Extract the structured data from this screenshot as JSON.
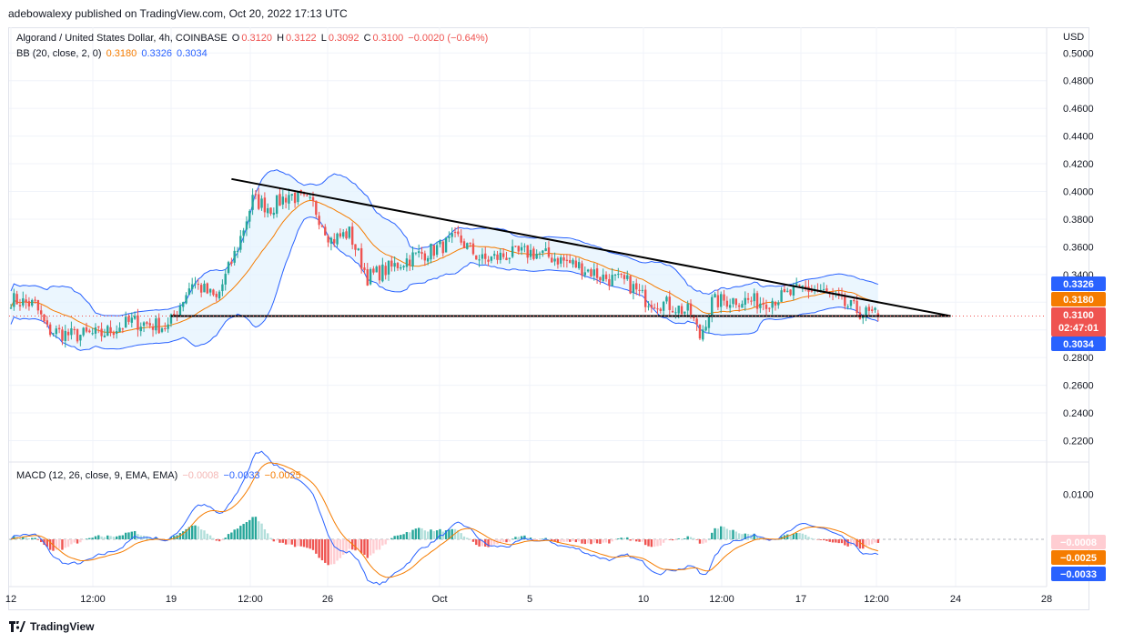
{
  "publisher_line": "adebowalexy published on TradingView.com, Oct 20, 2022 17:13 UTC",
  "footer": {
    "brand": "TradingView"
  },
  "legend": {
    "symbol": "Algorand / United States Dollar, 4h, COINBASE",
    "o_label": "O",
    "o_value": "0.3120",
    "h_label": "H",
    "h_value": "0.3122",
    "l_label": "L",
    "l_value": "0.3092",
    "c_label": "C",
    "c_value": "0.3100",
    "change": "−0.0020 (−0.64%)",
    "bb_label": "BB (20, close, 2, 0)",
    "bb_basis": "0.3180",
    "bb_upper": "0.3326",
    "bb_lower": "0.3034",
    "macd_label": "MACD (12, 26, close, 9, EMA, EMA)",
    "macd_hist": "−0.0008",
    "macd_line": "−0.0033",
    "macd_signal": "−0.0025"
  },
  "colors": {
    "up": "#26a69a",
    "down": "#ef5350",
    "bb_basis": "#f57c00",
    "bb_band": "#2962ff",
    "bb_fill": "#e3f2fd",
    "trendline": "#000000",
    "hist_light_up": "#b2dfdb",
    "hist_light_down": "#ffcdd2"
  },
  "chart_data": [
    {
      "type": "candlestick",
      "title": "Algorand / United States Dollar, 4h, COINBASE",
      "ylabel": "USD",
      "ylim": [
        0.2,
        0.5
      ],
      "y_ticks": [
        "0.5000",
        "0.4800",
        "0.4600",
        "0.4400",
        "0.4200",
        "0.4000",
        "0.3800",
        "0.3600",
        "0.3400",
        "0.2800",
        "0.2600",
        "0.2400",
        "0.2200"
      ],
      "x_ticks": [
        "12",
        "12:00",
        "19",
        "12:00",
        "26",
        "Oct",
        "5",
        "10",
        "12:00",
        "17",
        "12:00",
        "24",
        "28"
      ],
      "price_tags": [
        {
          "value": "0.3326",
          "text": "0.3326",
          "color": "#2962ff"
        },
        {
          "value": "0.3180",
          "text": "0.3180",
          "color": "#f57c00"
        },
        {
          "value": "0.3100",
          "text": "0.3100",
          "sub": "02:47:01",
          "color": "#ef5350"
        },
        {
          "value": "0.3034",
          "text": "0.3034",
          "color": "#2962ff"
        }
      ],
      "last": {
        "open": 0.312,
        "high": 0.3122,
        "low": 0.3092,
        "close": 0.31
      },
      "bollinger": {
        "length": 20,
        "mult": 2,
        "basis": 0.318,
        "upper": 0.3326,
        "lower": 0.3034
      },
      "anchors": [
        {
          "i": 0,
          "p": 0.322
        },
        {
          "i": 8,
          "p": 0.318
        },
        {
          "i": 12,
          "p": 0.3
        },
        {
          "i": 20,
          "p": 0.296
        },
        {
          "i": 30,
          "p": 0.297
        },
        {
          "i": 40,
          "p": 0.306
        },
        {
          "i": 52,
          "p": 0.302
        },
        {
          "i": 60,
          "p": 0.335
        },
        {
          "i": 68,
          "p": 0.322
        },
        {
          "i": 75,
          "p": 0.36
        },
        {
          "i": 80,
          "p": 0.394
        },
        {
          "i": 86,
          "p": 0.388
        },
        {
          "i": 92,
          "p": 0.398
        },
        {
          "i": 100,
          "p": 0.39
        },
        {
          "i": 106,
          "p": 0.365
        },
        {
          "i": 112,
          "p": 0.37
        },
        {
          "i": 118,
          "p": 0.338
        },
        {
          "i": 126,
          "p": 0.345
        },
        {
          "i": 132,
          "p": 0.352
        },
        {
          "i": 140,
          "p": 0.358
        },
        {
          "i": 148,
          "p": 0.366
        },
        {
          "i": 156,
          "p": 0.35
        },
        {
          "i": 164,
          "p": 0.354
        },
        {
          "i": 172,
          "p": 0.356
        },
        {
          "i": 180,
          "p": 0.352
        },
        {
          "i": 188,
          "p": 0.346
        },
        {
          "i": 196,
          "p": 0.338
        },
        {
          "i": 204,
          "p": 0.334
        },
        {
          "i": 210,
          "p": 0.322
        },
        {
          "i": 218,
          "p": 0.318
        },
        {
          "i": 225,
          "p": 0.312
        },
        {
          "i": 228,
          "p": 0.295
        },
        {
          "i": 232,
          "p": 0.32
        },
        {
          "i": 240,
          "p": 0.322
        },
        {
          "i": 248,
          "p": 0.32
        },
        {
          "i": 256,
          "p": 0.324
        },
        {
          "i": 262,
          "p": 0.33
        },
        {
          "i": 268,
          "p": 0.328
        },
        {
          "i": 276,
          "p": 0.318
        },
        {
          "i": 282,
          "p": 0.312
        },
        {
          "i": 287,
          "p": 0.31
        }
      ],
      "trendlines": [
        {
          "name": "descending-resistance",
          "from": {
            "i": 73,
            "p": 0.409
          },
          "to": {
            "i": 311,
            "p": 0.31
          }
        },
        {
          "name": "horizontal-support",
          "from": {
            "i": 53,
            "p": 0.31
          },
          "to": {
            "i": 311,
            "p": 0.31
          }
        }
      ]
    },
    {
      "type": "macd",
      "title": "MACD (12, 26, close, 9, EMA, EMA)",
      "ylim": [
        -0.024,
        0.016
      ],
      "y_ticks": [
        "0.0100"
      ],
      "price_tags": [
        {
          "value": "-0.0008",
          "text": "−0.0008",
          "color": "#ffcdd2",
          "text_color": "#131722"
        },
        {
          "value": "-0.0025",
          "text": "−0.0025",
          "color": "#f57c00"
        },
        {
          "value": "-0.0033",
          "text": "−0.0033",
          "color": "#2962ff"
        }
      ],
      "last": {
        "histogram": -0.0008,
        "macd": -0.0033,
        "signal": -0.0025
      }
    }
  ]
}
